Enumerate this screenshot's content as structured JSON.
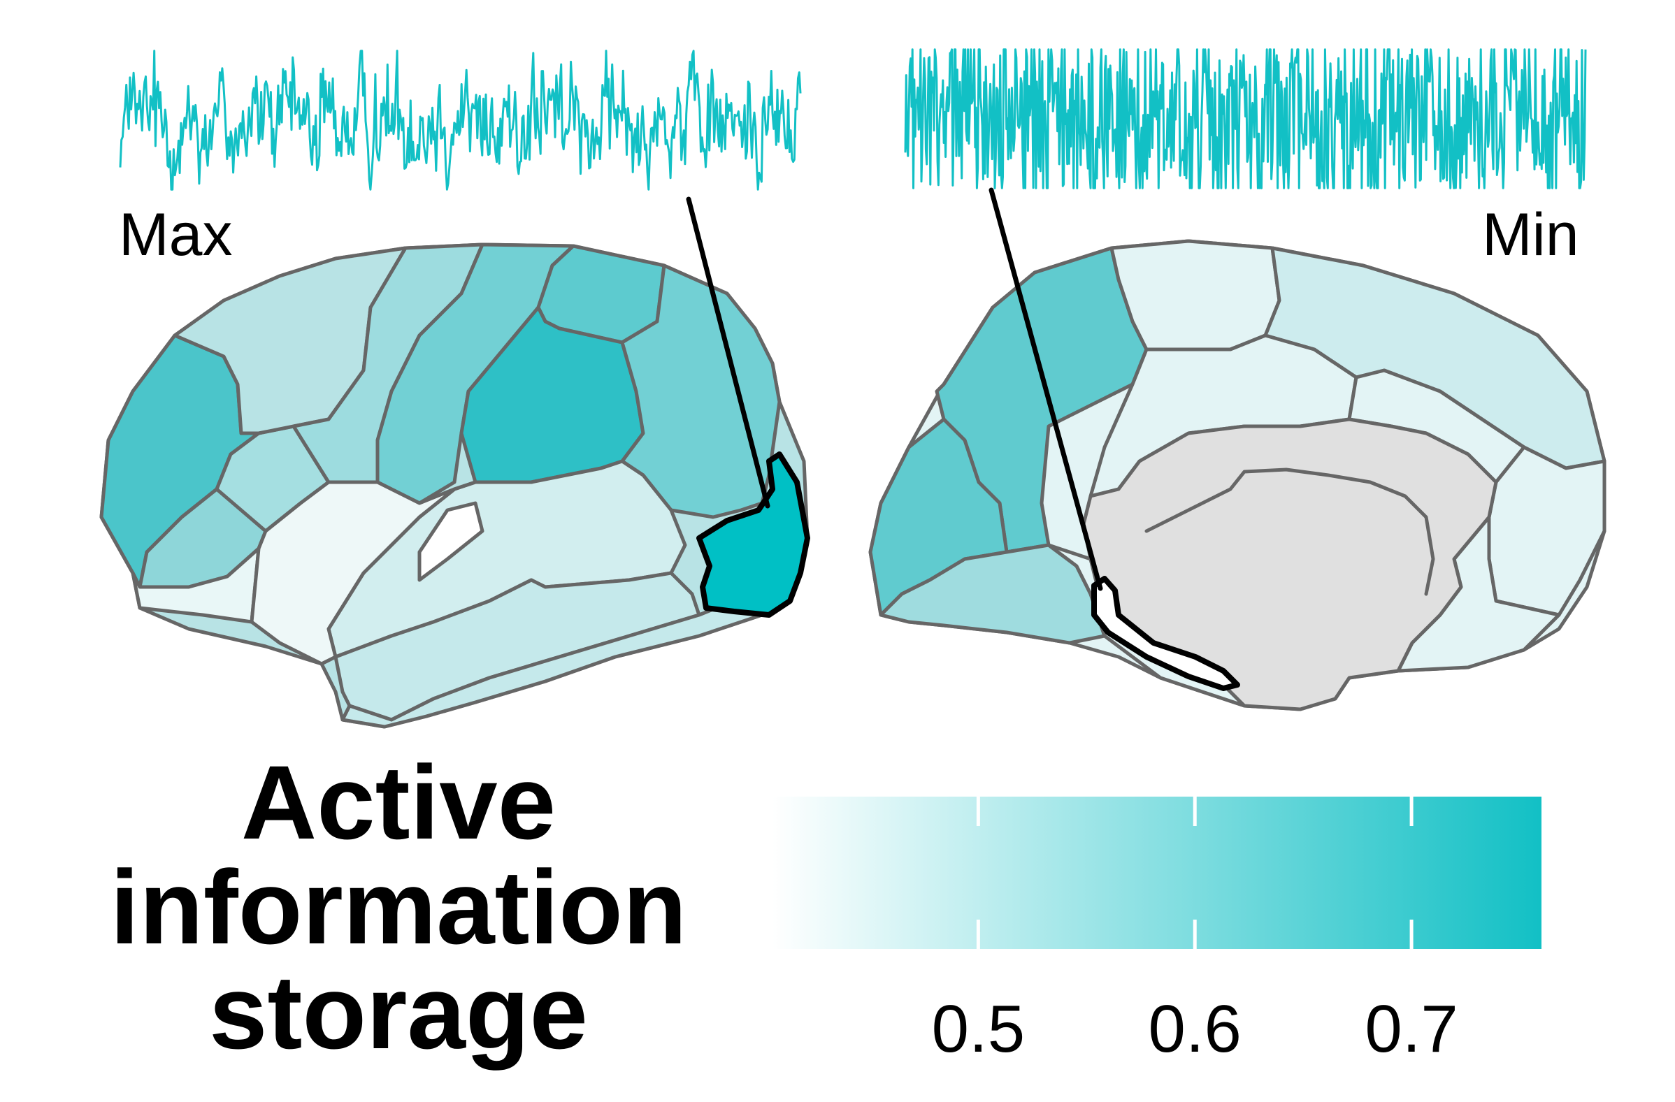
{
  "figure": {
    "max_label": "Max",
    "min_label": "Min",
    "title_lines": [
      "Active",
      "information",
      "storage"
    ],
    "colorbar": {
      "tick_labels": [
        "0.5",
        "0.6",
        "0.7"
      ],
      "tick_values": [
        0.5,
        0.6,
        0.7
      ],
      "range": [
        0.405,
        0.76
      ],
      "color_low": "#ffffff",
      "color_high": "#12c0c5"
    }
  },
  "colors": {
    "accent": "#12c0c5",
    "boundary": "#666666",
    "medial_wall": "#e0e0e0",
    "pointer": "#000000"
  },
  "signals": {
    "max_region": {
      "value_level": "Max",
      "color": "#12c0c5"
    },
    "min_region": {
      "value_level": "Min",
      "color": "#12c0c5"
    }
  }
}
